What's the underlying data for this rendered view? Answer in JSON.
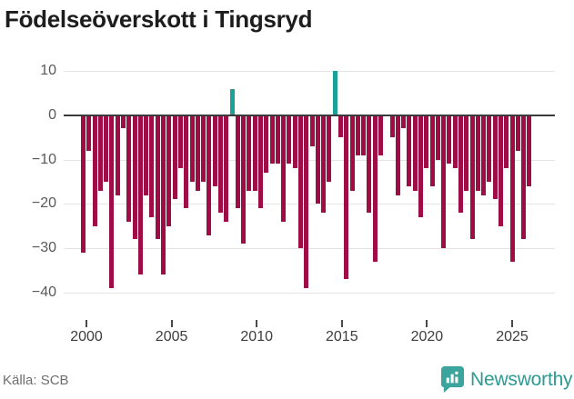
{
  "title": "Födelseöverskott i Tingsryd",
  "footer": {
    "source": "Källa: SCB",
    "brand": "Newsworthy"
  },
  "colors": {
    "negative_bar": "#9e0d46",
    "positive_bar": "#1ba09a",
    "zero_axis": "#3a3a3a",
    "gridline": "#e4e4e4",
    "title_text": "#1d1d1d",
    "y_tick_text": "#595959",
    "x_tick_text": "#3d3d3d",
    "source_text": "#6e6e6e",
    "brand_text": "#2d9a93",
    "brand_icon": "#3ba59d",
    "background": "#ffffff"
  },
  "chart_data": {
    "type": "bar",
    "title": "Födelseöverskott i Tingsryd",
    "xlabel": "",
    "ylabel": "",
    "source": "SCB",
    "grid": "horizontal",
    "legend": "none",
    "x_start": 2000,
    "bars_per_year": 3,
    "x_end": 2026,
    "xlim": [
      1999.5,
      2026.5
    ],
    "ylim": [
      -40,
      10
    ],
    "xticks": [
      2000,
      2005,
      2010,
      2015,
      2020,
      2025
    ],
    "yticks": [
      10,
      0,
      -10,
      -20,
      -30,
      -40
    ],
    "ytick_labels": [
      "10",
      "0",
      "−10",
      "−20",
      "−30",
      "−40"
    ],
    "values": [
      -31,
      -8,
      -25,
      -17,
      -15,
      -39,
      -18,
      -3,
      -24,
      -28,
      -36,
      -18,
      -23,
      -28,
      -36,
      -25,
      -19,
      -12,
      -21,
      -15,
      -17,
      -15,
      -27,
      -16,
      -22,
      -24,
      6,
      -21,
      -29,
      -17,
      -17,
      -21,
      -13,
      -11,
      -11,
      -24,
      -11,
      -12,
      -30,
      -39,
      -7,
      -20,
      -22,
      -15,
      10,
      -5,
      -37,
      -17,
      -9,
      -9,
      -22,
      -33,
      -9,
      0,
      -5,
      -18,
      -3,
      -16,
      -17,
      -23,
      -12,
      -16,
      -10,
      -30,
      -11,
      -12,
      -22,
      -17,
      -28,
      -17,
      -18,
      -15,
      -19,
      -25,
      -12,
      -33,
      -8,
      -28,
      -16
    ]
  }
}
